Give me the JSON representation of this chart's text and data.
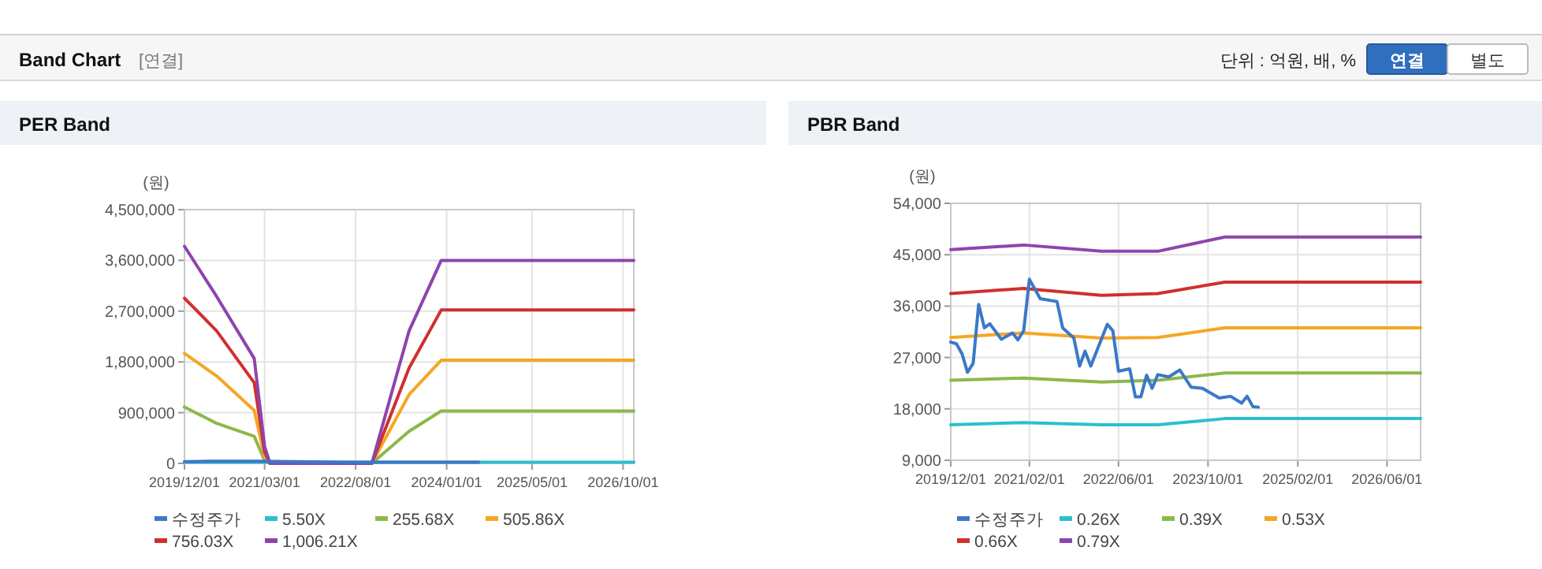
{
  "chart_data": [
    {
      "type": "other",
      "title": "Band Chart",
      "annotations": [
        "[연결]",
        "단위 : 억원, 배, %",
        "연결",
        "별도"
      ]
    },
    {
      "type": "line",
      "title": "PER Band",
      "ylabel": "(원)",
      "grid": true,
      "legend": "bottom",
      "marker": "none",
      "line_style": "solid",
      "x": [
        "2019-12",
        "2020-06",
        "2021-01",
        "2021-03",
        "2021-04",
        "2022-11",
        "2023-06",
        "2023-12",
        "2026-12"
      ],
      "xlim": [
        "2019-12-01",
        "2026-12-01"
      ],
      "xticks": [
        {
          "value": "2019-12-01",
          "label": "2019/12/01"
        },
        {
          "value": "2021-03-01",
          "label": "2021/03/01"
        },
        {
          "value": "2022-08-01",
          "label": "2022/08/01"
        },
        {
          "value": "2024-01-01",
          "label": "2024/01/01"
        },
        {
          "value": "2025-05-01",
          "label": "2025/05/01"
        },
        {
          "value": "2026-10-01",
          "label": "2026/10/01"
        }
      ],
      "ylim": [
        0,
        4500000
      ],
      "yticks": [
        0,
        {
          "value": 900000,
          "label": "900,000"
        },
        {
          "value": 1800000,
          "label": "1,800,000"
        },
        {
          "value": 2700000,
          "label": "2,700,000"
        },
        {
          "value": 3600000,
          "label": "3,600,000"
        },
        {
          "value": 4500000,
          "label": "4,500,000"
        }
      ],
      "series": [
        {
          "name": "수정주가",
          "color": "#3b78c8",
          "x": [
            "2019-12",
            "2020-05",
            "2021-02",
            "2022-06",
            "2023-01",
            "2024-07"
          ],
          "values": [
            30000,
            40000,
            40000,
            20000,
            20000,
            20000
          ]
        },
        {
          "name": "5.50X",
          "color": "#2bbfd0",
          "values": [
            20000,
            20000,
            20000,
            20000,
            20000,
            20000,
            20000,
            20000,
            20000
          ]
        },
        {
          "name": "255.68X",
          "color": "#8db84a",
          "values": [
            1000000,
            710000,
            480000,
            50000,
            0,
            0,
            570000,
            930000,
            930000
          ]
        },
        {
          "name": "505.86X",
          "color": "#f5a623",
          "values": [
            1950000,
            1550000,
            940000,
            120000,
            0,
            0,
            1220000,
            1830000,
            1830000
          ]
        },
        {
          "name": "756.03X",
          "color": "#d12f2f",
          "values": [
            2930000,
            2350000,
            1430000,
            200000,
            0,
            0,
            1690000,
            2720000,
            2720000
          ]
        },
        {
          "name": "1,006.21X",
          "color": "#8e44ad",
          "values": [
            3850000,
            2960000,
            1860000,
            300000,
            0,
            0,
            2350000,
            3600000,
            3600000
          ]
        }
      ]
    },
    {
      "type": "line",
      "title": "PBR Band",
      "ylabel": "(원)",
      "grid": true,
      "legend": "bottom",
      "marker": "none",
      "line_style": "solid",
      "x": [
        "2019-12",
        "2021-01",
        "2022-03",
        "2023-01",
        "2024-01",
        "2026-12"
      ],
      "xlim": [
        "2019-12-01",
        "2026-12-01"
      ],
      "xticks": [
        {
          "value": "2019-12-01",
          "label": "2019/12/01"
        },
        {
          "value": "2021-02-01",
          "label": "2021/02/01"
        },
        {
          "value": "2022-06-01",
          "label": "2022/06/01"
        },
        {
          "value": "2023-10-01",
          "label": "2023/10/01"
        },
        {
          "value": "2025-02-01",
          "label": "2025/02/01"
        },
        {
          "value": "2026-06-01",
          "label": "2026/06/01"
        }
      ],
      "ylim": [
        9000,
        54000
      ],
      "yticks": [
        {
          "value": 9000,
          "label": "9,000"
        },
        {
          "value": 18000,
          "label": "18,000"
        },
        {
          "value": 27000,
          "label": "27,000"
        },
        {
          "value": 36000,
          "label": "36,000"
        },
        {
          "value": 45000,
          "label": "45,000"
        },
        {
          "value": 54000,
          "label": "54,000"
        }
      ],
      "series": [
        {
          "name": "수정주가",
          "color": "#3b78c8",
          "x": [
            "2019-12",
            "2020-01",
            "2020-02",
            "2020-03",
            "2020-04",
            "2020-05",
            "2020-06",
            "2020-07",
            "2020-09",
            "2020-11",
            "2020-12",
            "2021-01",
            "2021-02",
            "2021-04",
            "2021-07",
            "2021-08",
            "2021-10",
            "2021-11",
            "2021-12",
            "2022-01",
            "2022-04",
            "2022-05",
            "2022-06",
            "2022-08",
            "2022-09",
            "2022-10",
            "2022-11",
            "2022-12",
            "2023-01",
            "2023-03",
            "2023-05",
            "2023-07",
            "2023-09",
            "2023-12",
            "2024-02",
            "2024-04",
            "2024-05",
            "2024-06",
            "2024-07"
          ],
          "values": [
            29700,
            29400,
            27600,
            24400,
            26000,
            36300,
            32200,
            32900,
            30200,
            31300,
            30100,
            31700,
            40700,
            37300,
            36800,
            32200,
            30400,
            25500,
            28100,
            25500,
            32800,
            31700,
            24600,
            25000,
            20100,
            20100,
            23900,
            21600,
            24000,
            23600,
            24800,
            21800,
            21600,
            19900,
            20200,
            19000,
            20200,
            18400,
            18300
          ]
        },
        {
          "name": "0.26X",
          "color": "#2bbfd0",
          "values": [
            15200,
            15600,
            15200,
            15200,
            16300,
            16300
          ]
        },
        {
          "name": "0.39X",
          "color": "#8db84a",
          "values": [
            23000,
            23400,
            22700,
            23000,
            24300,
            24300
          ]
        },
        {
          "name": "0.53X",
          "color": "#f5a623",
          "values": [
            30500,
            31300,
            30400,
            30500,
            32200,
            32200
          ]
        },
        {
          "name": "0.66X",
          "color": "#d12f2f",
          "values": [
            38200,
            39100,
            37900,
            38200,
            40200,
            40200
          ]
        },
        {
          "name": "0.79X",
          "color": "#8e44ad",
          "values": [
            45900,
            46700,
            45600,
            45600,
            48100,
            48100
          ]
        }
      ]
    }
  ]
}
